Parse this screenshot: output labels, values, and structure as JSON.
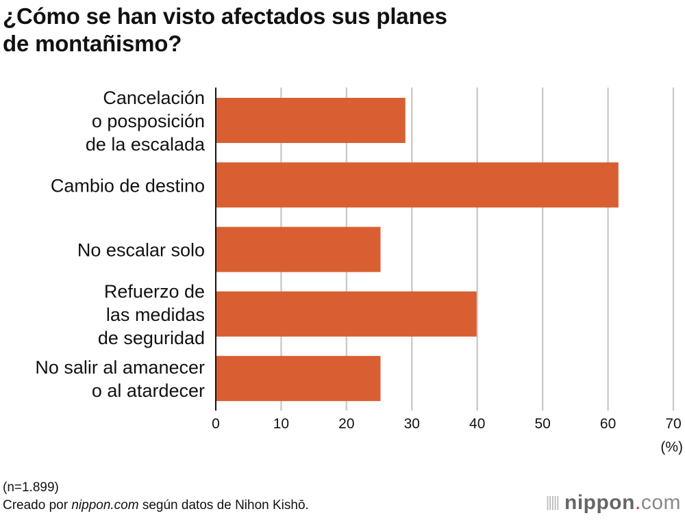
{
  "chart_data": {
    "type": "bar",
    "orientation": "horizontal",
    "title": "¿Cómo se han visto afectados sus planes de montañismo?",
    "title_lines": [
      "¿Cómo se han visto afectados sus planes",
      "de montañismo?"
    ],
    "categories": [
      [
        "Cancelación",
        "o posposición",
        "de la escalada"
      ],
      [
        "Cambio de destino"
      ],
      [
        "No escalar solo"
      ],
      [
        "Refuerzo de",
        "las medidas",
        "de seguridad"
      ],
      [
        "No salir al amanecer",
        "o al atardecer"
      ]
    ],
    "values": [
      29.0,
      61.6,
      25.2,
      39.9,
      25.2
    ],
    "xlim": [
      0,
      70
    ],
    "xticks": [
      "0",
      "10",
      "20",
      "30",
      "40",
      "50",
      "60",
      "70"
    ],
    "xunit": "(%)",
    "grid": true,
    "bar_color": "#d95f32",
    "grid_color": "#cccccc"
  },
  "footer": {
    "sample": "(n=1.899)",
    "credit_prefix": "Creado por ",
    "credit_site": "nippon.com",
    "credit_suffix": " según datos de Nihon Kishō."
  },
  "logo": {
    "name": "nippon",
    "dot": ".",
    "tld": "com"
  }
}
